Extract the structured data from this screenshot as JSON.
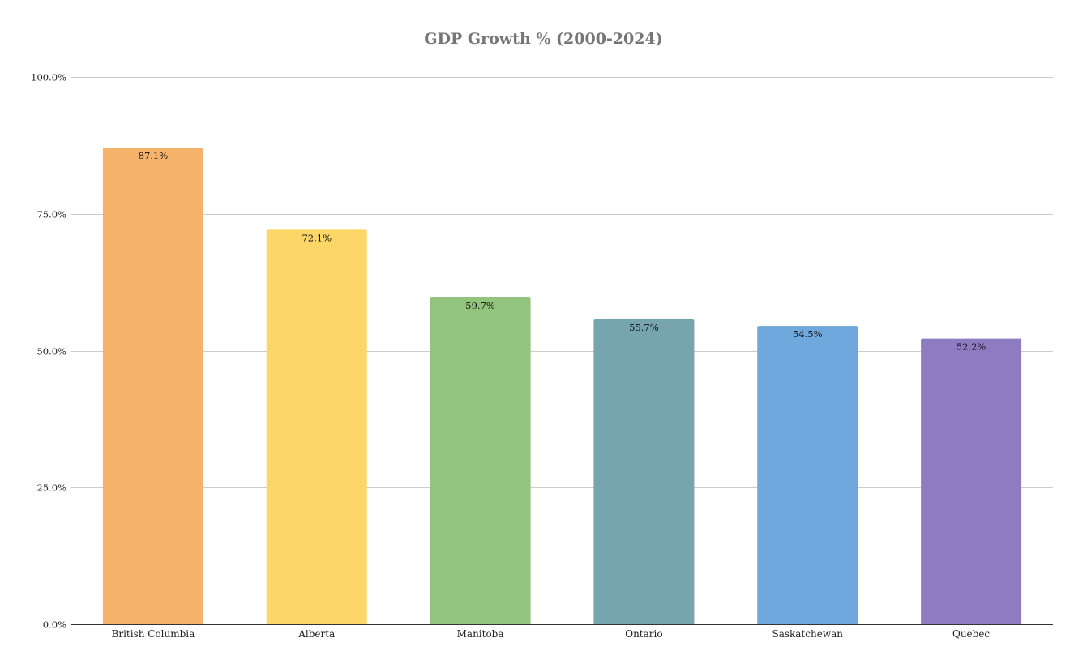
{
  "chart_data": {
    "type": "bar",
    "title": "GDP Growth % (2000-2024)",
    "xlabel": "",
    "ylabel": "",
    "categories": [
      "British Columbia",
      "Alberta",
      "Manitoba",
      "Ontario",
      "Saskatchewan",
      "Quebec"
    ],
    "values": [
      87.1,
      72.1,
      59.7,
      55.7,
      54.5,
      52.2
    ],
    "data_labels": [
      "87.1%",
      "72.1%",
      "59.7%",
      "55.7%",
      "54.5%",
      "52.2%"
    ],
    "colors": [
      "#f5b26b",
      "#fcd768",
      "#93c47d",
      "#76a5af",
      "#6fa8dc",
      "#8e7cc3"
    ],
    "ylim": [
      0,
      100
    ],
    "y_ticks": [
      0,
      25,
      50,
      75,
      100
    ],
    "y_tick_labels": [
      "0.0%",
      "25.0%",
      "50.0%",
      "75.0%",
      "100.0%"
    ],
    "grid": true,
    "legend": "none",
    "axis_color": "#333333",
    "grid_color": "#cccccc",
    "title_color": "#757575"
  }
}
